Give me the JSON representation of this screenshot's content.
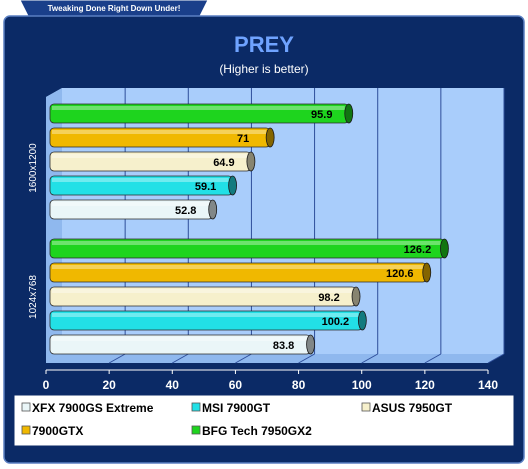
{
  "banner": {
    "text": "Tweaking Done Right Down Under!"
  },
  "colors": {
    "background": "#0b2a66",
    "plot_area": "#a9cdfb",
    "legend_bg": "#ffffff",
    "xfx": "#eaf6f8",
    "msi": "#22e0e6",
    "asus": "#f6f0cc",
    "gtx": "#f0b800",
    "bfg": "#1ed41e"
  },
  "chart_data": {
    "type": "bar",
    "orientation": "horizontal",
    "title": "PREY",
    "subtitle": "(Higher is better)",
    "categories": [
      "1600x1200",
      "1024x768"
    ],
    "series": [
      {
        "name": "XFX 7900GS Extreme",
        "color": "#eaf6f8",
        "values": [
          52.8,
          83.8
        ]
      },
      {
        "name": "MSI 7900GT",
        "color": "#22e0e6",
        "values": [
          59.1,
          100.2
        ]
      },
      {
        "name": "ASUS 7950GT",
        "color": "#f6f0cc",
        "values": [
          64.9,
          98.2
        ]
      },
      {
        "name": "7900GTX",
        "color": "#f0b800",
        "values": [
          71,
          120.6
        ]
      },
      {
        "name": "BFG Tech 7950GX2",
        "color": "#1ed41e",
        "values": [
          95.9,
          126.2
        ]
      }
    ],
    "xlim": [
      0,
      140
    ],
    "xticks": [
      0,
      20,
      40,
      60,
      80,
      100,
      120,
      140
    ],
    "grid": true,
    "legend_position": "bottom"
  }
}
